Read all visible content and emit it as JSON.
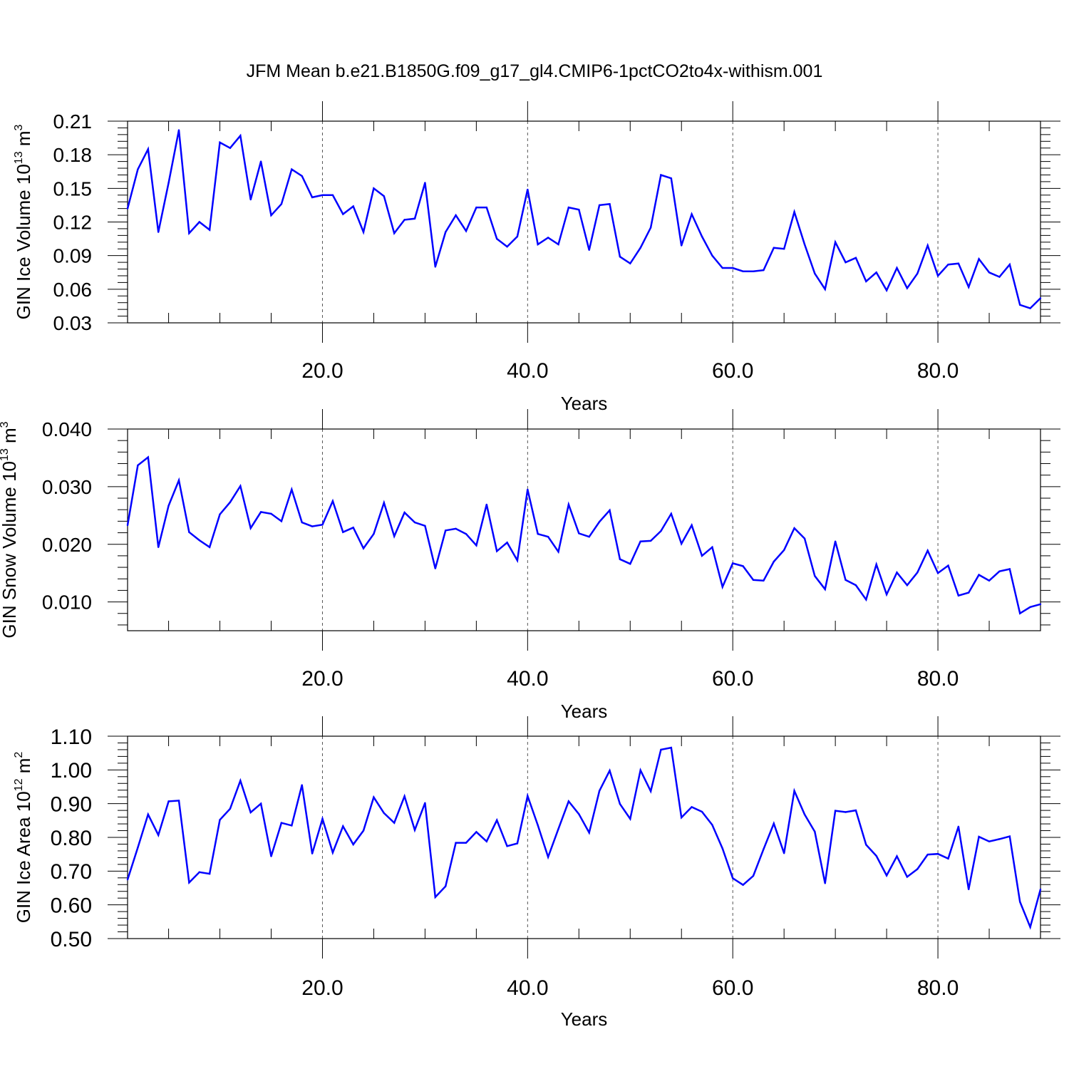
{
  "title": "JFM Mean b.e21.B1850G.f09_g17_gl4.CMIP6-1pctCO2to4x-withism.001",
  "line_color": "#0000ff",
  "chart_data": [
    {
      "type": "line",
      "ylabel": {
        "main": "GIN Ice Volume 10",
        "sup": "13",
        "unit": " m",
        "unit_sup": "3"
      },
      "xlabel": "Years",
      "xlim": [
        1,
        90
      ],
      "xticks": [
        20,
        40,
        60,
        80
      ],
      "xtick_labels": [
        "20.0",
        "40.0",
        "60.0",
        "80.0"
      ],
      "ylim": [
        0.03,
        0.21
      ],
      "yticks": [
        0.03,
        0.06,
        0.09,
        0.12,
        0.15,
        0.18,
        0.21
      ],
      "ytick_labels": [
        "0.03",
        "0.06",
        "0.09",
        "0.12",
        "0.15",
        "0.18",
        "0.21"
      ],
      "ytick_fontsize": 28,
      "grid": "vertical dashed at major x ticks",
      "series": [
        {
          "x": [
            1,
            2,
            3,
            4,
            5,
            6,
            7,
            8,
            9,
            10,
            11,
            12,
            13,
            14,
            15,
            16,
            17,
            18,
            19,
            20,
            21,
            22,
            23,
            24,
            25,
            26,
            27,
            28,
            29,
            30,
            31,
            32,
            33,
            34,
            35,
            36,
            37,
            38,
            39,
            40,
            41,
            42,
            43,
            44,
            45,
            46,
            47,
            48,
            49,
            50,
            51,
            52,
            53,
            54,
            55,
            56,
            57,
            58,
            59,
            60,
            61,
            62,
            63,
            64,
            65,
            66,
            67,
            68,
            69,
            70,
            71,
            72,
            73,
            74,
            75,
            76,
            77,
            78,
            79,
            80,
            81,
            82,
            83,
            84,
            85,
            86,
            87,
            88,
            89,
            90
          ],
          "y": [
            0.132,
            0.167,
            0.185,
            0.111,
            0.155,
            0.202,
            0.11,
            0.12,
            0.113,
            0.191,
            0.186,
            0.197,
            0.14,
            0.174,
            0.126,
            0.136,
            0.167,
            0.161,
            0.142,
            0.144,
            0.144,
            0.127,
            0.134,
            0.111,
            0.15,
            0.143,
            0.11,
            0.122,
            0.123,
            0.155,
            0.08,
            0.111,
            0.126,
            0.112,
            0.133,
            0.133,
            0.105,
            0.098,
            0.107,
            0.149,
            0.1,
            0.106,
            0.1,
            0.133,
            0.131,
            0.095,
            0.135,
            0.136,
            0.089,
            0.083,
            0.097,
            0.115,
            0.162,
            0.159,
            0.099,
            0.127,
            0.107,
            0.09,
            0.079,
            0.079,
            0.076,
            0.076,
            0.077,
            0.097,
            0.096,
            0.129,
            0.1,
            0.074,
            0.06,
            0.102,
            0.084,
            0.088,
            0.067,
            0.075,
            0.059,
            0.079,
            0.061,
            0.074,
            0.099,
            0.072,
            0.082,
            0.083,
            0.062,
            0.087,
            0.075,
            0.071,
            0.082,
            0.046,
            0.043,
            0.052
          ]
        }
      ]
    },
    {
      "type": "line",
      "ylabel": {
        "main": "GIN Snow Volume 10",
        "sup": "13",
        "unit": " m",
        "unit_sup": "3"
      },
      "xlabel": "Years",
      "xlim": [
        1,
        90
      ],
      "xticks": [
        20,
        40,
        60,
        80
      ],
      "xtick_labels": [
        "20.0",
        "40.0",
        "60.0",
        "80.0"
      ],
      "ylim": [
        0.005,
        0.04
      ],
      "yticks": [
        0.01,
        0.02,
        0.03,
        0.04
      ],
      "ytick_labels": [
        "0.010",
        "0.020",
        "0.030",
        "0.040"
      ],
      "ytick_fontsize": 28,
      "grid": "vertical dashed at major x ticks",
      "series": [
        {
          "x": [
            1,
            2,
            3,
            4,
            5,
            6,
            7,
            8,
            9,
            10,
            11,
            12,
            13,
            14,
            15,
            16,
            17,
            18,
            19,
            20,
            21,
            22,
            23,
            24,
            25,
            26,
            27,
            28,
            29,
            30,
            31,
            32,
            33,
            34,
            35,
            36,
            37,
            38,
            39,
            40,
            41,
            42,
            43,
            44,
            45,
            46,
            47,
            48,
            49,
            50,
            51,
            52,
            53,
            54,
            55,
            56,
            57,
            58,
            59,
            60,
            61,
            62,
            63,
            64,
            65,
            66,
            67,
            68,
            69,
            70,
            71,
            72,
            73,
            74,
            75,
            76,
            77,
            78,
            79,
            80,
            81,
            82,
            83,
            84,
            85,
            86,
            87,
            88,
            89,
            90
          ],
          "y": [
            0.0233,
            0.0337,
            0.0351,
            0.0195,
            0.0267,
            0.0311,
            0.0221,
            0.0207,
            0.0195,
            0.0252,
            0.0273,
            0.0301,
            0.0228,
            0.0256,
            0.0253,
            0.024,
            0.0295,
            0.0238,
            0.0231,
            0.0234,
            0.0275,
            0.0221,
            0.0229,
            0.0193,
            0.0218,
            0.0272,
            0.0214,
            0.0255,
            0.0238,
            0.0232,
            0.0158,
            0.0224,
            0.0227,
            0.0218,
            0.0198,
            0.0269,
            0.0188,
            0.0203,
            0.0172,
            0.0295,
            0.0218,
            0.0213,
            0.0187,
            0.0269,
            0.0219,
            0.0213,
            0.0239,
            0.0259,
            0.0174,
            0.0166,
            0.0205,
            0.0206,
            0.0223,
            0.0253,
            0.0201,
            0.0233,
            0.018,
            0.0195,
            0.0126,
            0.0167,
            0.0162,
            0.0138,
            0.0137,
            0.017,
            0.019,
            0.0228,
            0.021,
            0.0145,
            0.0122,
            0.0205,
            0.0138,
            0.0129,
            0.0104,
            0.0165,
            0.0113,
            0.0151,
            0.0129,
            0.0151,
            0.0189,
            0.015,
            0.0163,
            0.0111,
            0.0116,
            0.0147,
            0.0137,
            0.0153,
            0.0157,
            0.008,
            0.0091,
            0.0096
          ]
        }
      ]
    },
    {
      "type": "line",
      "ylabel": {
        "main": "GIN Ice Area 10",
        "sup": "12",
        "unit": " m",
        "unit_sup": "2"
      },
      "xlabel": "Years",
      "xlim": [
        1,
        90
      ],
      "xticks": [
        20,
        40,
        60,
        80
      ],
      "xtick_labels": [
        "20.0",
        "40.0",
        "60.0",
        "80.0"
      ],
      "ylim": [
        0.5,
        1.1
      ],
      "yticks": [
        0.5,
        0.6,
        0.7,
        0.8,
        0.9,
        1.0,
        1.1
      ],
      "ytick_labels": [
        "0.50",
        "0.60",
        "0.70",
        "0.80",
        "0.90",
        "1.00",
        "1.10"
      ],
      "ytick_fontsize": 30,
      "grid": "vertical dashed at major x ticks",
      "series": [
        {
          "x": [
            1,
            2,
            3,
            4,
            5,
            6,
            7,
            8,
            9,
            10,
            11,
            12,
            13,
            14,
            15,
            16,
            17,
            18,
            19,
            20,
            21,
            22,
            23,
            24,
            25,
            26,
            27,
            28,
            29,
            30,
            31,
            32,
            33,
            34,
            35,
            36,
            37,
            38,
            39,
            40,
            41,
            42,
            43,
            44,
            45,
            46,
            47,
            48,
            49,
            50,
            51,
            52,
            53,
            54,
            55,
            56,
            57,
            58,
            59,
            60,
            61,
            62,
            63,
            64,
            65,
            66,
            67,
            68,
            69,
            70,
            71,
            72,
            73,
            74,
            75,
            76,
            77,
            78,
            79,
            80,
            81,
            82,
            83,
            84,
            85,
            86,
            87,
            88,
            89,
            90
          ],
          "y": [
            0.675,
            0.77,
            0.868,
            0.807,
            0.907,
            0.909,
            0.666,
            0.697,
            0.692,
            0.852,
            0.885,
            0.968,
            0.874,
            0.9,
            0.744,
            0.843,
            0.835,
            0.955,
            0.752,
            0.855,
            0.755,
            0.833,
            0.779,
            0.82,
            0.919,
            0.872,
            0.843,
            0.922,
            0.822,
            0.902,
            0.623,
            0.655,
            0.784,
            0.784,
            0.816,
            0.788,
            0.851,
            0.774,
            0.782,
            0.923,
            0.836,
            0.742,
            0.825,
            0.907,
            0.869,
            0.814,
            0.938,
            0.998,
            0.899,
            0.855,
            0.999,
            0.937,
            1.06,
            1.066,
            0.859,
            0.89,
            0.876,
            0.837,
            0.767,
            0.679,
            0.659,
            0.686,
            0.765,
            0.841,
            0.753,
            0.938,
            0.868,
            0.817,
            0.664,
            0.879,
            0.875,
            0.88,
            0.778,
            0.745,
            0.687,
            0.744,
            0.683,
            0.706,
            0.749,
            0.751,
            0.737,
            0.832,
            0.646,
            0.802,
            0.788,
            0.795,
            0.803,
            0.609,
            0.534,
            0.646
          ]
        }
      ]
    }
  ]
}
